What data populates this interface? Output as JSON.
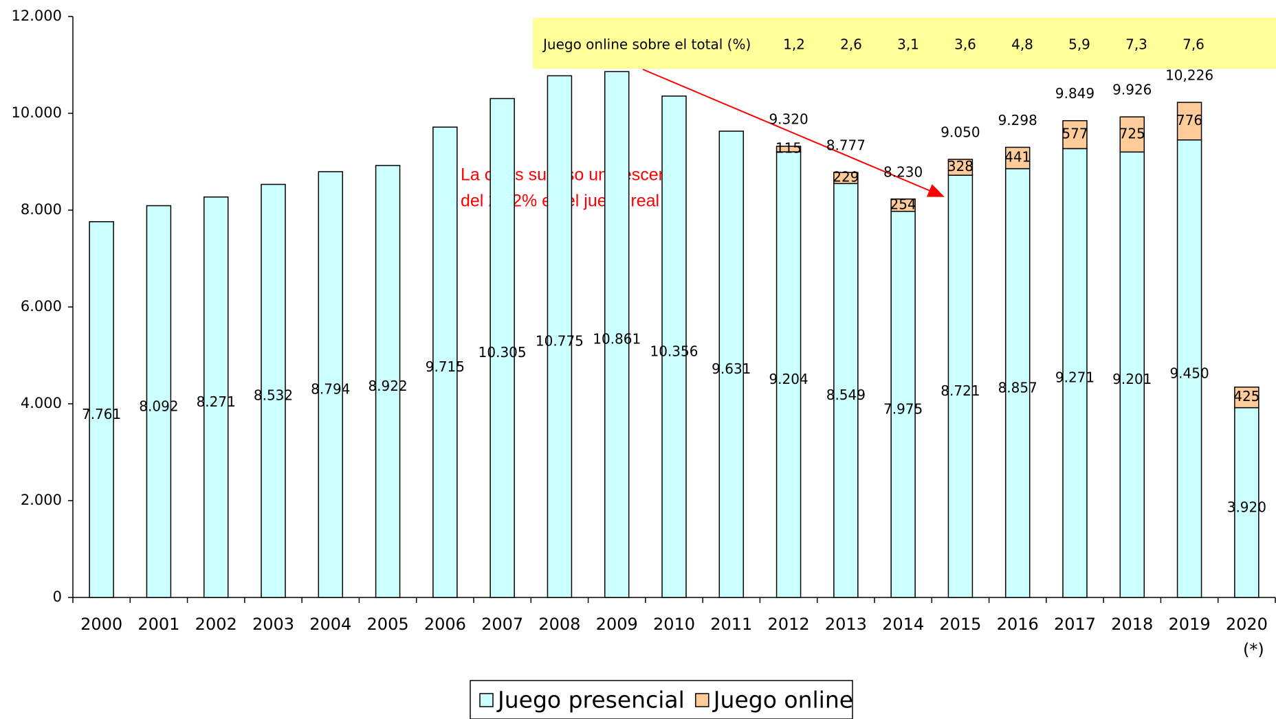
{
  "chart_data": {
    "type": "stacked_bar",
    "categories": [
      "2000",
      "2001",
      "2002",
      "2003",
      "2004",
      "2005",
      "2006",
      "2007",
      "2008",
      "2009",
      "2010",
      "2011",
      "2012",
      "2013",
      "2014",
      "2015",
      "2016",
      "2017",
      "2018",
      "2019",
      "2020 (*)"
    ],
    "series": [
      {
        "name": "Juego presencial",
        "color": "#ccffff",
        "values": [
          7761,
          8092,
          8271,
          8532,
          8794,
          8922,
          9715,
          10305,
          10775,
          10861,
          10356,
          9631,
          9204,
          8549,
          7975,
          8721,
          8857,
          9271,
          9201,
          9450,
          3920
        ],
        "value_labels": [
          "7.761",
          "8.092",
          "8.271",
          "8.532",
          "8.794",
          "8.922",
          "9.715",
          "10.305",
          "10.775",
          "10.861",
          "10.356",
          "9.631",
          "9.204",
          "8.549",
          "7.975",
          "8.721",
          "8.857",
          "9.271",
          "9.201",
          "9.450",
          "3.920"
        ]
      },
      {
        "name": "Juego online",
        "color": "#ffcc99",
        "values": [
          null,
          null,
          null,
          null,
          null,
          null,
          null,
          null,
          null,
          null,
          null,
          null,
          115,
          229,
          254,
          328,
          441,
          577,
          725,
          776,
          425
        ],
        "value_labels": [
          null,
          null,
          null,
          null,
          null,
          null,
          null,
          null,
          null,
          null,
          null,
          null,
          "115",
          "229",
          "254",
          "328",
          "441",
          "577",
          "725",
          "776",
          "425"
        ]
      }
    ],
    "totals": {
      "values": [
        null,
        null,
        null,
        null,
        null,
        null,
        null,
        null,
        null,
        null,
        null,
        null,
        9320,
        8777,
        8230,
        9050,
        9298,
        9849,
        9926,
        10226,
        null
      ],
      "value_labels": [
        null,
        null,
        null,
        null,
        null,
        null,
        null,
        null,
        null,
        null,
        null,
        null,
        "9.320",
        "8.777",
        "8.230",
        "9.050",
        "9.298",
        "9.849",
        "9.926",
        "10,226",
        null
      ]
    },
    "online_share": {
      "label": "Juego online sobre el total (%)",
      "values": [
        1.2,
        2.6,
        3.1,
        3.6,
        4.8,
        5.9,
        7.3,
        7.6
      ],
      "value_labels": [
        "1,2",
        "2,6",
        "3,1",
        "3,6",
        "4,8",
        "5,9",
        "7,3",
        "7,6"
      ]
    },
    "annotation": [
      "La crisis supuso un descenso",
      "del 24,2% en el juego real"
    ],
    "ylim": [
      0,
      12000
    ],
    "yticks": [
      0,
      {
        "value": 2000,
        "label": "2.000"
      },
      {
        "value": 4000,
        "label": "4.000"
      },
      {
        "value": 6000,
        "label": "6.000"
      },
      {
        "value": 8000,
        "label": "8.000"
      },
      {
        "value": 10000,
        "label": "10.000"
      },
      {
        "value": 12000,
        "label": "12.000"
      }
    ],
    "legend": "bottom"
  }
}
